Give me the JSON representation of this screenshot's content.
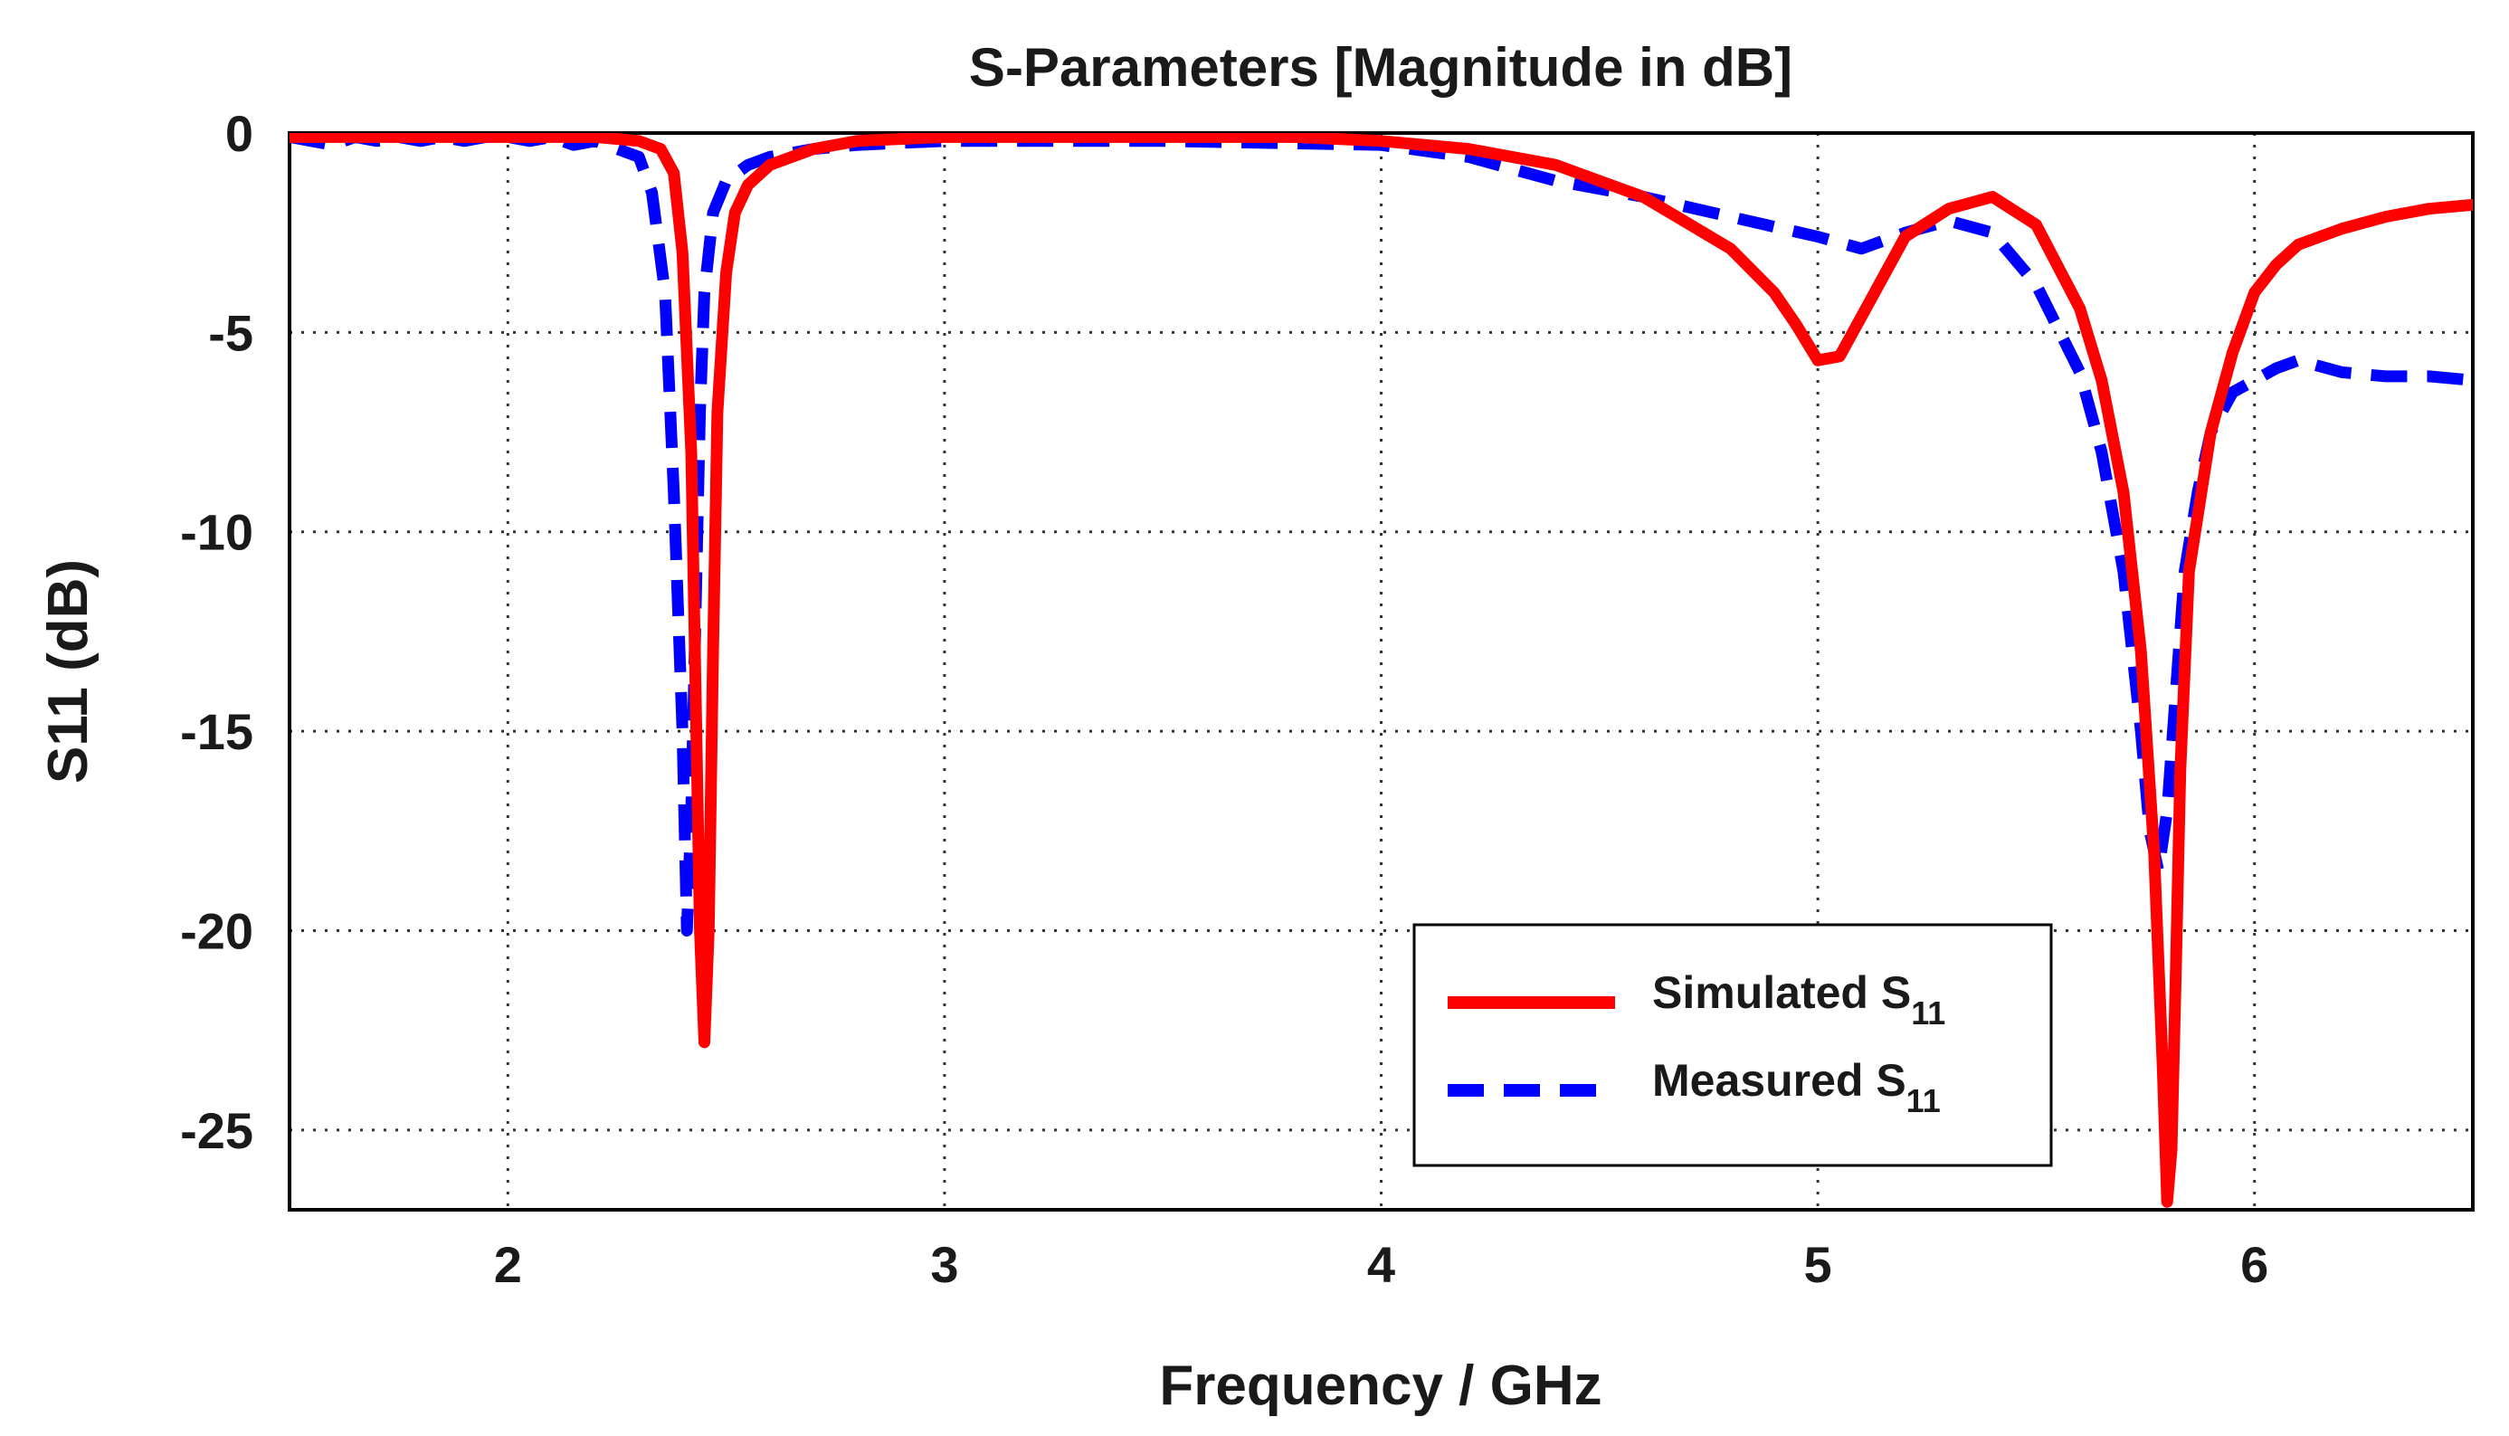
{
  "chart_data": {
    "type": "line",
    "title": "S-Parameters [Magnitude in dB]",
    "xlabel": "Frequency / GHz",
    "ylabel": "S11 (dB)",
    "xlim": [
      1.5,
      6.5
    ],
    "ylim": [
      -27,
      0
    ],
    "xticks": [
      2,
      3,
      4,
      5,
      6
    ],
    "xtick_labels": [
      "2",
      "3",
      "4",
      "5",
      "6"
    ],
    "yticks": [
      0,
      -5,
      -10,
      -15,
      -20,
      -25
    ],
    "ytick_labels": [
      "0",
      "-5",
      "-10",
      "-15",
      "-20",
      "-25"
    ],
    "grid": true,
    "legend_position": "bottom-right",
    "series": [
      {
        "name": "Simulated",
        "subscript": "11",
        "legend_label": "Simulated S",
        "color": "#ff0000",
        "dash": "solid",
        "x": [
          1.5,
          1.6,
          1.7,
          1.8,
          1.9,
          2.0,
          2.1,
          2.2,
          2.3,
          2.35,
          2.38,
          2.4,
          2.42,
          2.43,
          2.44,
          2.45,
          2.46,
          2.47,
          2.48,
          2.5,
          2.52,
          2.55,
          2.6,
          2.7,
          2.8,
          3.0,
          3.2,
          3.5,
          3.8,
          4.0,
          4.2,
          4.4,
          4.6,
          4.8,
          4.9,
          4.95,
          5.0,
          5.05,
          5.1,
          5.2,
          5.3,
          5.4,
          5.5,
          5.6,
          5.65,
          5.7,
          5.74,
          5.77,
          5.79,
          5.8,
          5.81,
          5.82,
          5.83,
          5.85,
          5.9,
          5.95,
          6.0,
          6.05,
          6.1,
          6.2,
          6.3,
          6.4,
          6.5
        ],
        "y": [
          -0.1,
          -0.1,
          -0.1,
          -0.1,
          -0.1,
          -0.1,
          -0.1,
          -0.1,
          -0.2,
          -0.4,
          -1.0,
          -3.0,
          -8.0,
          -14.0,
          -20.0,
          -22.8,
          -20.0,
          -13.0,
          -7.0,
          -3.5,
          -2.0,
          -1.3,
          -0.8,
          -0.4,
          -0.2,
          -0.1,
          -0.1,
          -0.1,
          -0.1,
          -0.2,
          -0.4,
          -0.8,
          -1.6,
          -2.9,
          -4.0,
          -4.8,
          -5.7,
          -5.6,
          -4.6,
          -2.6,
          -1.9,
          -1.6,
          -2.3,
          -4.4,
          -6.2,
          -9.0,
          -13.0,
          -18.0,
          -23.5,
          -26.8,
          -25.5,
          -21.0,
          -16.0,
          -11.0,
          -7.5,
          -5.5,
          -4.0,
          -3.3,
          -2.8,
          -2.4,
          -2.1,
          -1.9,
          -1.8
        ]
      },
      {
        "name": "Measured",
        "subscript": "11",
        "legend_label": "Measured S",
        "color": "#0000ff",
        "dash": "dashed",
        "x": [
          1.5,
          1.55,
          1.6,
          1.65,
          1.7,
          1.75,
          1.8,
          1.85,
          1.9,
          1.95,
          2.0,
          2.05,
          2.1,
          2.15,
          2.2,
          2.25,
          2.3,
          2.33,
          2.36,
          2.38,
          2.4,
          2.41,
          2.42,
          2.43,
          2.44,
          2.45,
          2.47,
          2.5,
          2.55,
          2.6,
          2.7,
          2.8,
          3.0,
          3.5,
          4.0,
          4.2,
          4.4,
          4.6,
          4.8,
          5.0,
          5.1,
          5.2,
          5.3,
          5.4,
          5.5,
          5.6,
          5.65,
          5.7,
          5.74,
          5.76,
          5.78,
          5.8,
          5.82,
          5.84,
          5.87,
          5.9,
          5.95,
          6.0,
          6.05,
          6.1,
          6.2,
          6.3,
          6.4,
          6.5
        ],
        "y": [
          -0.1,
          -0.2,
          -0.3,
          -0.1,
          -0.2,
          -0.1,
          -0.2,
          -0.1,
          -0.2,
          -0.1,
          -0.1,
          -0.2,
          -0.1,
          -0.3,
          -0.2,
          -0.4,
          -0.6,
          -1.5,
          -4.0,
          -9.0,
          -15.0,
          -20.0,
          -17.0,
          -12.0,
          -7.0,
          -4.0,
          -2.0,
          -1.2,
          -0.8,
          -0.6,
          -0.4,
          -0.3,
          -0.2,
          -0.2,
          -0.3,
          -0.6,
          -1.2,
          -1.6,
          -2.1,
          -2.6,
          -2.9,
          -2.5,
          -2.2,
          -2.5,
          -3.8,
          -6.0,
          -8.0,
          -11.0,
          -15.0,
          -17.5,
          -18.5,
          -17.0,
          -14.0,
          -11.0,
          -9.0,
          -7.5,
          -6.5,
          -6.2,
          -5.9,
          -5.7,
          -6.0,
          -6.1,
          -6.1,
          -6.2
        ]
      }
    ]
  }
}
